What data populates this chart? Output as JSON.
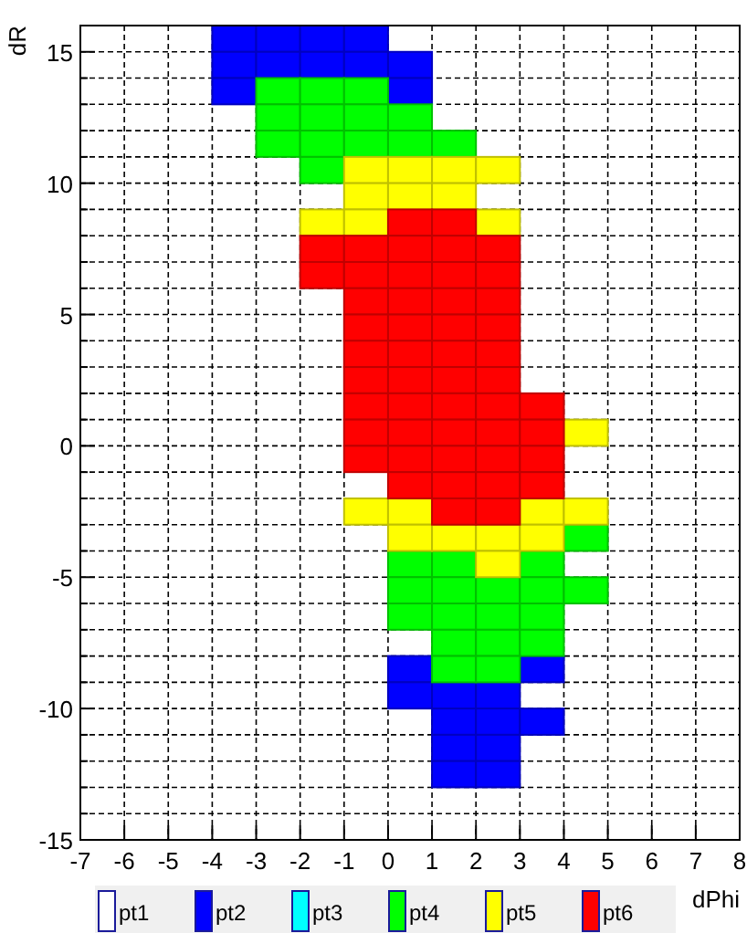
{
  "chart_data": {
    "type": "scatter",
    "xlabel": "dPhi",
    "ylabel": "dR",
    "xlim": [
      -7,
      8
    ],
    "ylim": [
      -15,
      16
    ],
    "xticks": [
      -7,
      -6,
      -5,
      -4,
      -3,
      -2,
      -1,
      0,
      1,
      2,
      3,
      4,
      5,
      6,
      7,
      8
    ],
    "yticks": [
      -15,
      {
        "value": -14,
        "label": null
      },
      {
        "value": -13,
        "label": null
      },
      {
        "value": -12,
        "label": null
      },
      {
        "value": -11,
        "label": null
      },
      -10,
      {
        "value": -9,
        "label": null
      },
      {
        "value": -8,
        "label": null
      },
      {
        "value": -7,
        "label": null
      },
      {
        "value": -6,
        "label": null
      },
      -5,
      {
        "value": -4,
        "label": null
      },
      {
        "value": -3,
        "label": null
      },
      {
        "value": -2,
        "label": null
      },
      {
        "value": -1,
        "label": null
      },
      0,
      {
        "value": 1,
        "label": null
      },
      {
        "value": 2,
        "label": null
      },
      {
        "value": 3,
        "label": null
      },
      {
        "value": 4,
        "label": null
      },
      5,
      {
        "value": 6,
        "label": null
      },
      {
        "value": 7,
        "label": null
      },
      {
        "value": 8,
        "label": null
      },
      {
        "value": 9,
        "label": null
      },
      10,
      {
        "value": 11,
        "label": null
      },
      {
        "value": 12,
        "label": null
      },
      {
        "value": 13,
        "label": null
      },
      {
        "value": 14,
        "label": null
      },
      15,
      {
        "value": 16,
        "label": null
      }
    ],
    "grid": true,
    "legend": "bottom",
    "marker": "square",
    "series": [
      {
        "name": "pt1",
        "color": "#ffffff"
      },
      {
        "name": "pt2",
        "color": "#0000ff",
        "x": [
          -3.5,
          -2.5,
          -1.5,
          -0.5,
          -3.5,
          -2.5,
          -1.5,
          -0.5,
          0.5,
          -3.5,
          0.5,
          0.5,
          3.5,
          0.5,
          1.5,
          2.5,
          1.5,
          2.5,
          3.5,
          1.5,
          2.5,
          1.5,
          2.5
        ],
        "values": [
          15.5,
          15.5,
          15.5,
          15.5,
          14.5,
          14.5,
          14.5,
          14.5,
          14.5,
          13.5,
          13.5,
          -8.5,
          -8.5,
          -9.5,
          -9.5,
          -9.5,
          -10.5,
          -10.5,
          -10.5,
          -11.5,
          -11.5,
          -12.5,
          -12.5
        ]
      },
      {
        "name": "pt3",
        "color": "#00ffff"
      },
      {
        "name": "pt4",
        "color": "#00ff00",
        "x": [
          -2.5,
          -1.5,
          -0.5,
          -2.5,
          -1.5,
          -0.5,
          0.5,
          -2.5,
          -1.5,
          -0.5,
          0.5,
          1.5,
          -1.5,
          4.5,
          0.5,
          1.5,
          3.5,
          0.5,
          1.5,
          2.5,
          3.5,
          4.5,
          0.5,
          1.5,
          2.5,
          3.5,
          1.5,
          2.5,
          3.5,
          1.5,
          2.5
        ],
        "values": [
          13.5,
          13.5,
          13.5,
          12.5,
          12.5,
          12.5,
          12.5,
          11.5,
          11.5,
          11.5,
          11.5,
          11.5,
          10.5,
          -3.5,
          -4.5,
          -4.5,
          -4.5,
          -5.5,
          -5.5,
          -5.5,
          -5.5,
          -5.5,
          -6.5,
          -6.5,
          -6.5,
          -6.5,
          -7.5,
          -7.5,
          -7.5,
          -8.5,
          -8.5
        ]
      },
      {
        "name": "pt5",
        "color": "#ffff00",
        "x": [
          -0.5,
          0.5,
          1.5,
          2.5,
          -0.5,
          0.5,
          1.5,
          -1.5,
          -0.5,
          2.5,
          4.5,
          -0.5,
          0.5,
          3.5,
          4.5,
          0.5,
          1.5,
          2.5,
          3.5,
          2.5
        ],
        "values": [
          10.5,
          10.5,
          10.5,
          10.5,
          9.5,
          9.5,
          9.5,
          8.5,
          8.5,
          8.5,
          0.5,
          -2.5,
          -2.5,
          -2.5,
          -2.5,
          -3.5,
          -3.5,
          -3.5,
          -3.5,
          -4.5
        ]
      },
      {
        "name": "pt6",
        "color": "#ff0000",
        "x": [
          0.5,
          1.5,
          -1.5,
          -0.5,
          0.5,
          1.5,
          2.5,
          -1.5,
          -0.5,
          0.5,
          1.5,
          2.5,
          -0.5,
          0.5,
          1.5,
          2.5,
          -0.5,
          0.5,
          1.5,
          2.5,
          -0.5,
          0.5,
          1.5,
          2.5,
          -0.5,
          0.5,
          1.5,
          2.5,
          -0.5,
          0.5,
          1.5,
          2.5,
          3.5,
          -0.5,
          0.5,
          1.5,
          2.5,
          3.5,
          -0.5,
          0.5,
          1.5,
          2.5,
          3.5,
          0.5,
          1.5,
          2.5,
          3.5,
          1.5,
          2.5
        ],
        "values": [
          8.5,
          8.5,
          7.5,
          7.5,
          7.5,
          7.5,
          7.5,
          6.5,
          6.5,
          6.5,
          6.5,
          6.5,
          5.5,
          5.5,
          5.5,
          5.5,
          4.5,
          4.5,
          4.5,
          4.5,
          3.5,
          3.5,
          3.5,
          3.5,
          2.5,
          2.5,
          2.5,
          2.5,
          1.5,
          1.5,
          1.5,
          1.5,
          1.5,
          0.5,
          0.5,
          0.5,
          0.5,
          0.5,
          -0.5,
          -0.5,
          -0.5,
          -0.5,
          -0.5,
          -1.5,
          -1.5,
          -1.5,
          -1.5,
          -2.5,
          -2.5
        ]
      }
    ]
  }
}
